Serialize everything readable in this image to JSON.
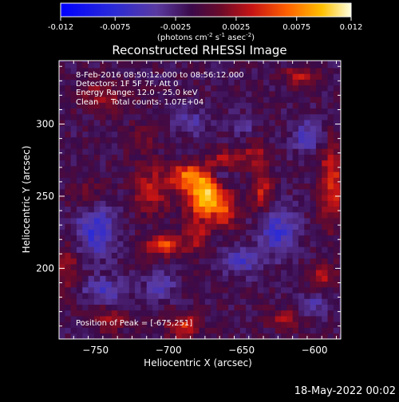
{
  "colorbar": {
    "tick_labels": [
      "-0.012",
      "-0.0075",
      "-0.0025",
      "0.0025",
      "0.0075",
      "0.012"
    ],
    "range": [
      -0.012,
      0.012
    ],
    "units_main": "(photons cm",
    "units_sup1": "-2",
    "units_mid1": " s",
    "units_sup2": "-1",
    "units_mid2": " asec",
    "units_sup3": "-2",
    "units_end": ")",
    "colors": {
      "neg_low": "#0a1ed8",
      "neg_mid": "#5a3aa0",
      "zero": "#3a0a4a",
      "pos_mid": "#c81414",
      "pos_high": "#ff8a00",
      "peak": "#ffffc8"
    }
  },
  "title": "Reconstructed RHESSI Image",
  "annotations": {
    "line1": "8-Feb-2016 08:50:12.000 to 08:56:12.000",
    "line2": "Detectors: 1F 5F 7F, Att 0",
    "line3": "Energy Range: 12.0 - 25.0 keV",
    "line4_a": "Clean",
    "line4_b": "Total counts: 1.07E+04",
    "peak": "Position of Peak = [-675,251]"
  },
  "timestamp": "18-May-2022 00:02",
  "chart_data": {
    "type": "heatmap",
    "title": "Reconstructed RHESSI Image",
    "xlabel": "Heliocentric X (arcsec)",
    "ylabel": "Heliocentric Y (arcsec)",
    "xlim": [
      -775,
      -582
    ],
    "ylim": [
      151,
      344
    ],
    "x_ticks": [
      -750,
      -700,
      -650,
      -600
    ],
    "y_ticks": [
      200,
      250,
      300
    ],
    "peak_position": [
      -675,
      251
    ],
    "value_range": [
      -0.012,
      0.012
    ],
    "pixel_size_arcsec": 4,
    "sources": [
      {
        "x": -675,
        "y": 251,
        "amp": 0.0115,
        "sx": 9,
        "sy": 11
      },
      {
        "x": -688,
        "y": 264,
        "amp": 0.007,
        "sx": 8,
        "sy": 6
      },
      {
        "x": -712,
        "y": 255,
        "amp": 0.0045,
        "sx": 9,
        "sy": 12
      },
      {
        "x": -703,
        "y": 216,
        "amp": 0.0068,
        "sx": 9,
        "sy": 5
      },
      {
        "x": -680,
        "y": 222,
        "amp": 0.0042,
        "sx": 6,
        "sy": 7
      },
      {
        "x": -660,
        "y": 239,
        "amp": 0.0048,
        "sx": 6,
        "sy": 8
      },
      {
        "x": -636,
        "y": 255,
        "amp": 0.005,
        "sx": 5,
        "sy": 11
      },
      {
        "x": -660,
        "y": 276,
        "amp": 0.004,
        "sx": 8,
        "sy": 5
      },
      {
        "x": -640,
        "y": 280,
        "amp": 0.0035,
        "sx": 6,
        "sy": 6
      },
      {
        "x": -690,
        "y": 160,
        "amp": 0.0055,
        "sx": 8,
        "sy": 6
      },
      {
        "x": -588,
        "y": 260,
        "amp": 0.006,
        "sx": 6,
        "sy": 20
      },
      {
        "x": -595,
        "y": 195,
        "amp": 0.0045,
        "sx": 6,
        "sy": 7
      },
      {
        "x": -745,
        "y": 320,
        "amp": 0.0035,
        "sx": 12,
        "sy": 8
      },
      {
        "x": -755,
        "y": 250,
        "amp": 0.003,
        "sx": 9,
        "sy": 8
      },
      {
        "x": -610,
        "y": 333,
        "amp": 0.0045,
        "sx": 8,
        "sy": 5
      },
      {
        "x": -770,
        "y": 200,
        "amp": 0.004,
        "sx": 6,
        "sy": 12
      },
      {
        "x": -740,
        "y": 165,
        "amp": 0.0035,
        "sx": 8,
        "sy": 6
      },
      {
        "x": -620,
        "y": 165,
        "amp": 0.004,
        "sx": 9,
        "sy": 5
      },
      {
        "x": -720,
        "y": 290,
        "amp": 0.0025,
        "sx": 7,
        "sy": 7
      },
      {
        "x": -650,
        "y": 205,
        "amp": -0.004,
        "sx": 8,
        "sy": 7
      },
      {
        "x": -665,
        "y": 263,
        "amp": -0.004,
        "sx": 5,
        "sy": 5
      },
      {
        "x": -750,
        "y": 228,
        "amp": -0.0055,
        "sx": 10,
        "sy": 14
      },
      {
        "x": -625,
        "y": 225,
        "amp": -0.005,
        "sx": 9,
        "sy": 12
      },
      {
        "x": -605,
        "y": 292,
        "amp": -0.004,
        "sx": 8,
        "sy": 8
      },
      {
        "x": -742,
        "y": 185,
        "amp": -0.004,
        "sx": 12,
        "sy": 6
      },
      {
        "x": -685,
        "y": 302,
        "amp": -0.0035,
        "sx": 9,
        "sy": 6
      },
      {
        "x": -705,
        "y": 188,
        "amp": -0.0035,
        "sx": 7,
        "sy": 6
      },
      {
        "x": -650,
        "y": 300,
        "amp": -0.003,
        "sx": 6,
        "sy": 5
      },
      {
        "x": -600,
        "y": 175,
        "amp": -0.003,
        "sx": 8,
        "sy": 6
      }
    ]
  }
}
